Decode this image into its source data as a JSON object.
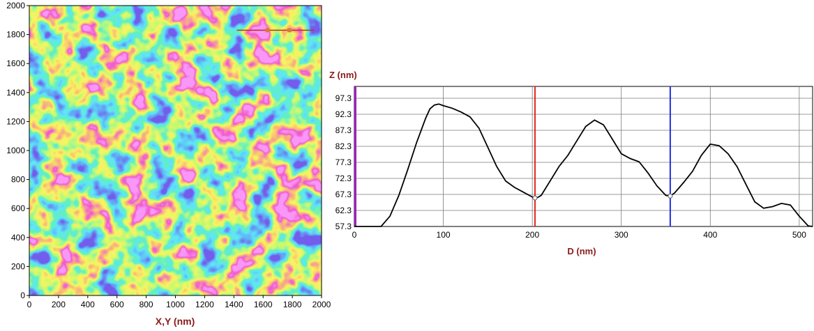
{
  "colors": {
    "axis_label": "#8b1a1a",
    "profile_line": "#000000",
    "cursor_left": "#e8261e",
    "cursor_right": "#2030e0",
    "cursor_marker": "#d87a40",
    "scan_line": "#c0301c",
    "left_axis_bar": "#a020c0",
    "grid": "#7a7a7a"
  },
  "chart_data": [
    {
      "type": "heatmap",
      "title": "",
      "xlabel": "X,Y (nm)",
      "ylabel": "",
      "xlim": [
        0,
        2000
      ],
      "ylim": [
        0,
        2000
      ],
      "x_ticks": [
        "0",
        "200",
        "400",
        "600",
        "800",
        "1000",
        "1200",
        "1400",
        "1600",
        "1800",
        "2000"
      ],
      "y_ticks": [
        "0",
        "200",
        "400",
        "600",
        "800",
        "1000",
        "1200",
        "1400",
        "1600",
        "1800",
        "2000"
      ],
      "colorscale": [
        "#2b1bd6",
        "#1f6be8",
        "#1fc8f0",
        "#1fe07a",
        "#8ef22a",
        "#f2e61e",
        "#f07a2e",
        "#e0189b",
        "#f050f0"
      ],
      "features_note_omitted": true,
      "scan_line": {
        "x_start": 1420,
        "x_end": 1950,
        "y": 1830,
        "markers_x": [
          1630,
          1780
        ]
      }
    },
    {
      "type": "line",
      "title": "",
      "xlabel": "D (nm)",
      "ylabel": "Z (nm)",
      "xlim": [
        0,
        515
      ],
      "ylim": [
        57.3,
        101
      ],
      "x_ticks": [
        0,
        100,
        200,
        300,
        400,
        500
      ],
      "y_ticks": [
        "57.3",
        "62.3",
        "67.3",
        "72.3",
        "77.3",
        "82.3",
        "87.3",
        "92.3",
        "97.3"
      ],
      "grid": true,
      "series": [
        {
          "x": [
            0,
            15,
            30,
            40,
            50,
            60,
            70,
            80,
            85,
            90,
            95,
            100,
            110,
            120,
            130,
            140,
            150,
            160,
            170,
            180,
            190,
            200,
            205,
            210,
            220,
            230,
            240,
            250,
            260,
            270,
            280,
            290,
            300,
            310,
            320,
            330,
            340,
            350,
            355,
            360,
            370,
            380,
            390,
            400,
            410,
            420,
            430,
            440,
            450,
            460,
            470,
            480,
            490,
            500,
            510,
            515
          ],
          "y": [
            57.3,
            57.3,
            57.3,
            60.5,
            67.0,
            75.0,
            83.5,
            91.0,
            94.0,
            95.2,
            95.5,
            95.0,
            94.2,
            93.0,
            91.5,
            88.0,
            82.0,
            76.0,
            71.5,
            69.5,
            68.0,
            66.5,
            66.2,
            67.0,
            71.5,
            76.0,
            79.5,
            84.0,
            88.5,
            90.5,
            89.0,
            84.5,
            80.0,
            78.5,
            77.5,
            74.0,
            70.0,
            67.0,
            66.8,
            67.8,
            71.0,
            74.5,
            79.5,
            83.0,
            82.5,
            80.0,
            76.0,
            70.5,
            65.0,
            63.0,
            63.5,
            64.5,
            64.0,
            60.5,
            57.5,
            57.3
          ]
        }
      ],
      "cursors": [
        {
          "x": 203,
          "y": 66.2,
          "color": "#e8261e"
        },
        {
          "x": 355,
          "y": 66.8,
          "color": "#2030e0"
        }
      ]
    }
  ]
}
